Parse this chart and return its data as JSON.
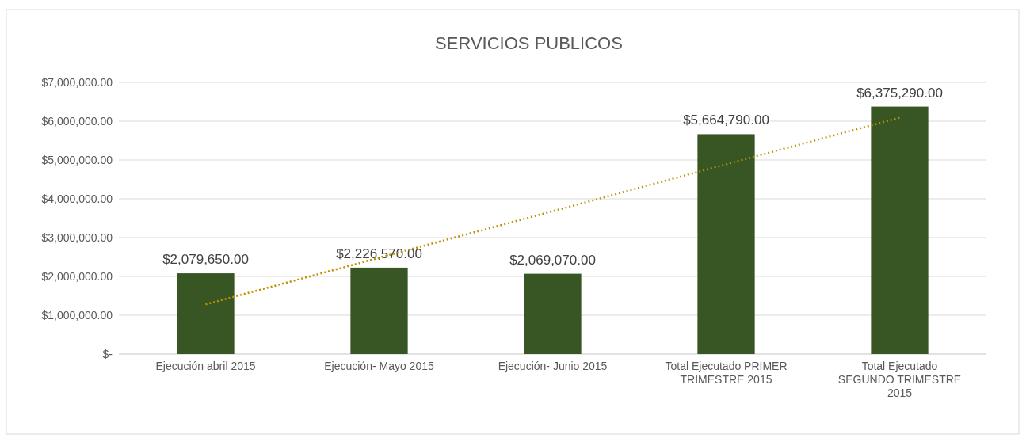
{
  "chart_data": {
    "type": "bar",
    "title": "SERVICIOS PUBLICOS",
    "categories": [
      "Ejecución  abril 2015",
      "Ejecución- Mayo 2015",
      "Ejecución- Junio 2015",
      "Total Ejecutado PRIMER TRIMESTRE  2015",
      "Total Ejecutado SEGUNDO TRIMESTRE 2015"
    ],
    "series": [
      {
        "color": "#375623",
        "values": [
          2079650,
          2226570,
          2069070,
          5664790,
          6375290
        ],
        "value_labels": [
          "$2,079,650.00",
          "$2,226,570.00",
          "$2,069,070.00",
          "$5,664,790.00",
          "$6,375,290.00"
        ]
      },
      {
        "type": "line",
        "color": "#bf9000",
        "line_style": "dotted",
        "values": [
          1280000,
          2480000,
          3680000,
          4890000,
          6090000
        ]
      }
    ],
    "ylim": [
      0,
      7000000
    ],
    "yticks": [
      {
        "value": 0,
        "label": "$-"
      },
      {
        "value": 1000000,
        "label": "$1,000,000.00"
      },
      {
        "value": 2000000,
        "label": "$2,000,000.00"
      },
      {
        "value": 3000000,
        "label": "$3,000,000.00"
      },
      {
        "value": 4000000,
        "label": "$4,000,000.00"
      },
      {
        "value": 5000000,
        "label": "$5,000,000.00"
      },
      {
        "value": 6000000,
        "label": "$6,000,000.00"
      },
      {
        "value": 7000000,
        "label": "$7,000,000.00"
      }
    ],
    "grid": "y"
  }
}
